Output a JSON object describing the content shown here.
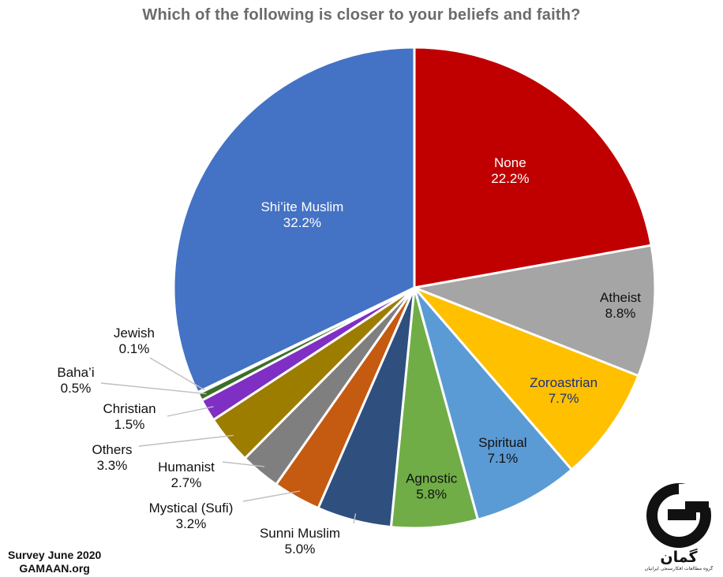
{
  "chart_data": {
    "type": "pie",
    "title": "Which of the following is closer to your beliefs and faith?",
    "slices": [
      {
        "label": "None",
        "value": 22.2,
        "value_label": "22.2%",
        "color": "#c00000",
        "text_color": "#ffffff"
      },
      {
        "label": "Atheist",
        "value": 8.8,
        "value_label": "8.8%",
        "color": "#a5a5a5",
        "text_color": "#111111"
      },
      {
        "label": "Zoroastrian",
        "value": 7.7,
        "value_label": "7.7%",
        "color": "#ffc000",
        "text_color": "#1f2f7a"
      },
      {
        "label": "Spiritual",
        "value": 7.1,
        "value_label": "7.1%",
        "color": "#5b9bd5",
        "text_color": "#111111"
      },
      {
        "label": "Agnostic",
        "value": 5.8,
        "value_label": "5.8%",
        "color": "#70ad47",
        "text_color": "#111111"
      },
      {
        "label": "Sunni Muslim",
        "value": 5.0,
        "value_label": "5.0%",
        "color": "#2f4f7f",
        "text_color": "#111111"
      },
      {
        "label": "Mystical (Sufi)",
        "value": 3.2,
        "value_label": "3.2%",
        "color": "#c55a11",
        "text_color": "#111111"
      },
      {
        "label": "Humanist",
        "value": 2.7,
        "value_label": "2.7%",
        "color": "#7f7f7f",
        "text_color": "#111111"
      },
      {
        "label": "Others",
        "value": 3.3,
        "value_label": "3.3%",
        "color": "#9c7d00",
        "text_color": "#111111"
      },
      {
        "label": "Christian",
        "value": 1.5,
        "value_label": "1.5%",
        "color": "#7f2fc4",
        "text_color": "#111111"
      },
      {
        "label": "Baha’i",
        "value": 0.5,
        "value_label": "0.5%",
        "color": "#3c6e2a",
        "text_color": "#111111"
      },
      {
        "label": "Jewish",
        "value": 0.1,
        "value_label": "0.1%",
        "color": "#2f4f7f",
        "text_color": "#111111"
      },
      {
        "label": "Shi’ite Muslim",
        "value": 32.2,
        "value_label": "32.2%",
        "color": "#4472c4",
        "text_color": "#ffffff"
      }
    ]
  },
  "footer": {
    "line1": "Survey June 2020",
    "line2": "GAMAAN.org"
  },
  "logo": {
    "name": "گمان",
    "subtitle": "گروه مطالعات افکارسنجی ایرانیان"
  }
}
